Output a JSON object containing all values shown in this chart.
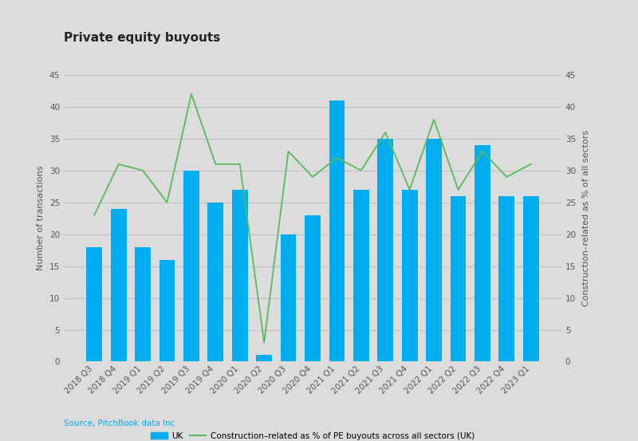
{
  "title": "Private equity buyouts",
  "categories": [
    "2018 Q3",
    "2018 Q4",
    "2019 Q1",
    "2019 Q2",
    "2019 Q3",
    "2019 Q4",
    "2020 Q1",
    "2020 Q2",
    "2020 Q3",
    "2020 Q4",
    "2021 Q1",
    "2021 Q2",
    "2021 Q3",
    "2021 Q4",
    "2022 Q1",
    "2022 Q2",
    "2022 Q3",
    "2022 Q4",
    "2023 Q1"
  ],
  "bar_values": [
    18,
    24,
    18,
    16,
    30,
    25,
    27,
    1,
    20,
    23,
    41,
    27,
    35,
    27,
    35,
    26,
    34,
    26,
    26
  ],
  "line_values": [
    23,
    31,
    30,
    25,
    42,
    31,
    31,
    3,
    33,
    29,
    32,
    30,
    36,
    27,
    38,
    27,
    33,
    29,
    31
  ],
  "bar_color": "#00AEEF",
  "line_color": "#5CB85C",
  "ylabel_left": "Number of transactions",
  "ylabel_right": "Construction–related as % of all sectors",
  "ylim": [
    0,
    45
  ],
  "yticks": [
    0,
    5,
    10,
    15,
    20,
    25,
    30,
    35,
    40,
    45
  ],
  "legend_bar_label": "UK",
  "legend_line_label": "Construction–related as % of PE buyouts across all sectors (UK)",
  "source_text": "Source, PitchBook data Inc",
  "background_color": "#DCDCDC",
  "plot_background": "#DCDCDC",
  "title_fontsize": 11,
  "axis_fontsize": 8,
  "tick_fontsize": 7.5,
  "source_color": "#00AEEF",
  "grid_color": "#BBBBBB",
  "text_color": "#555555"
}
